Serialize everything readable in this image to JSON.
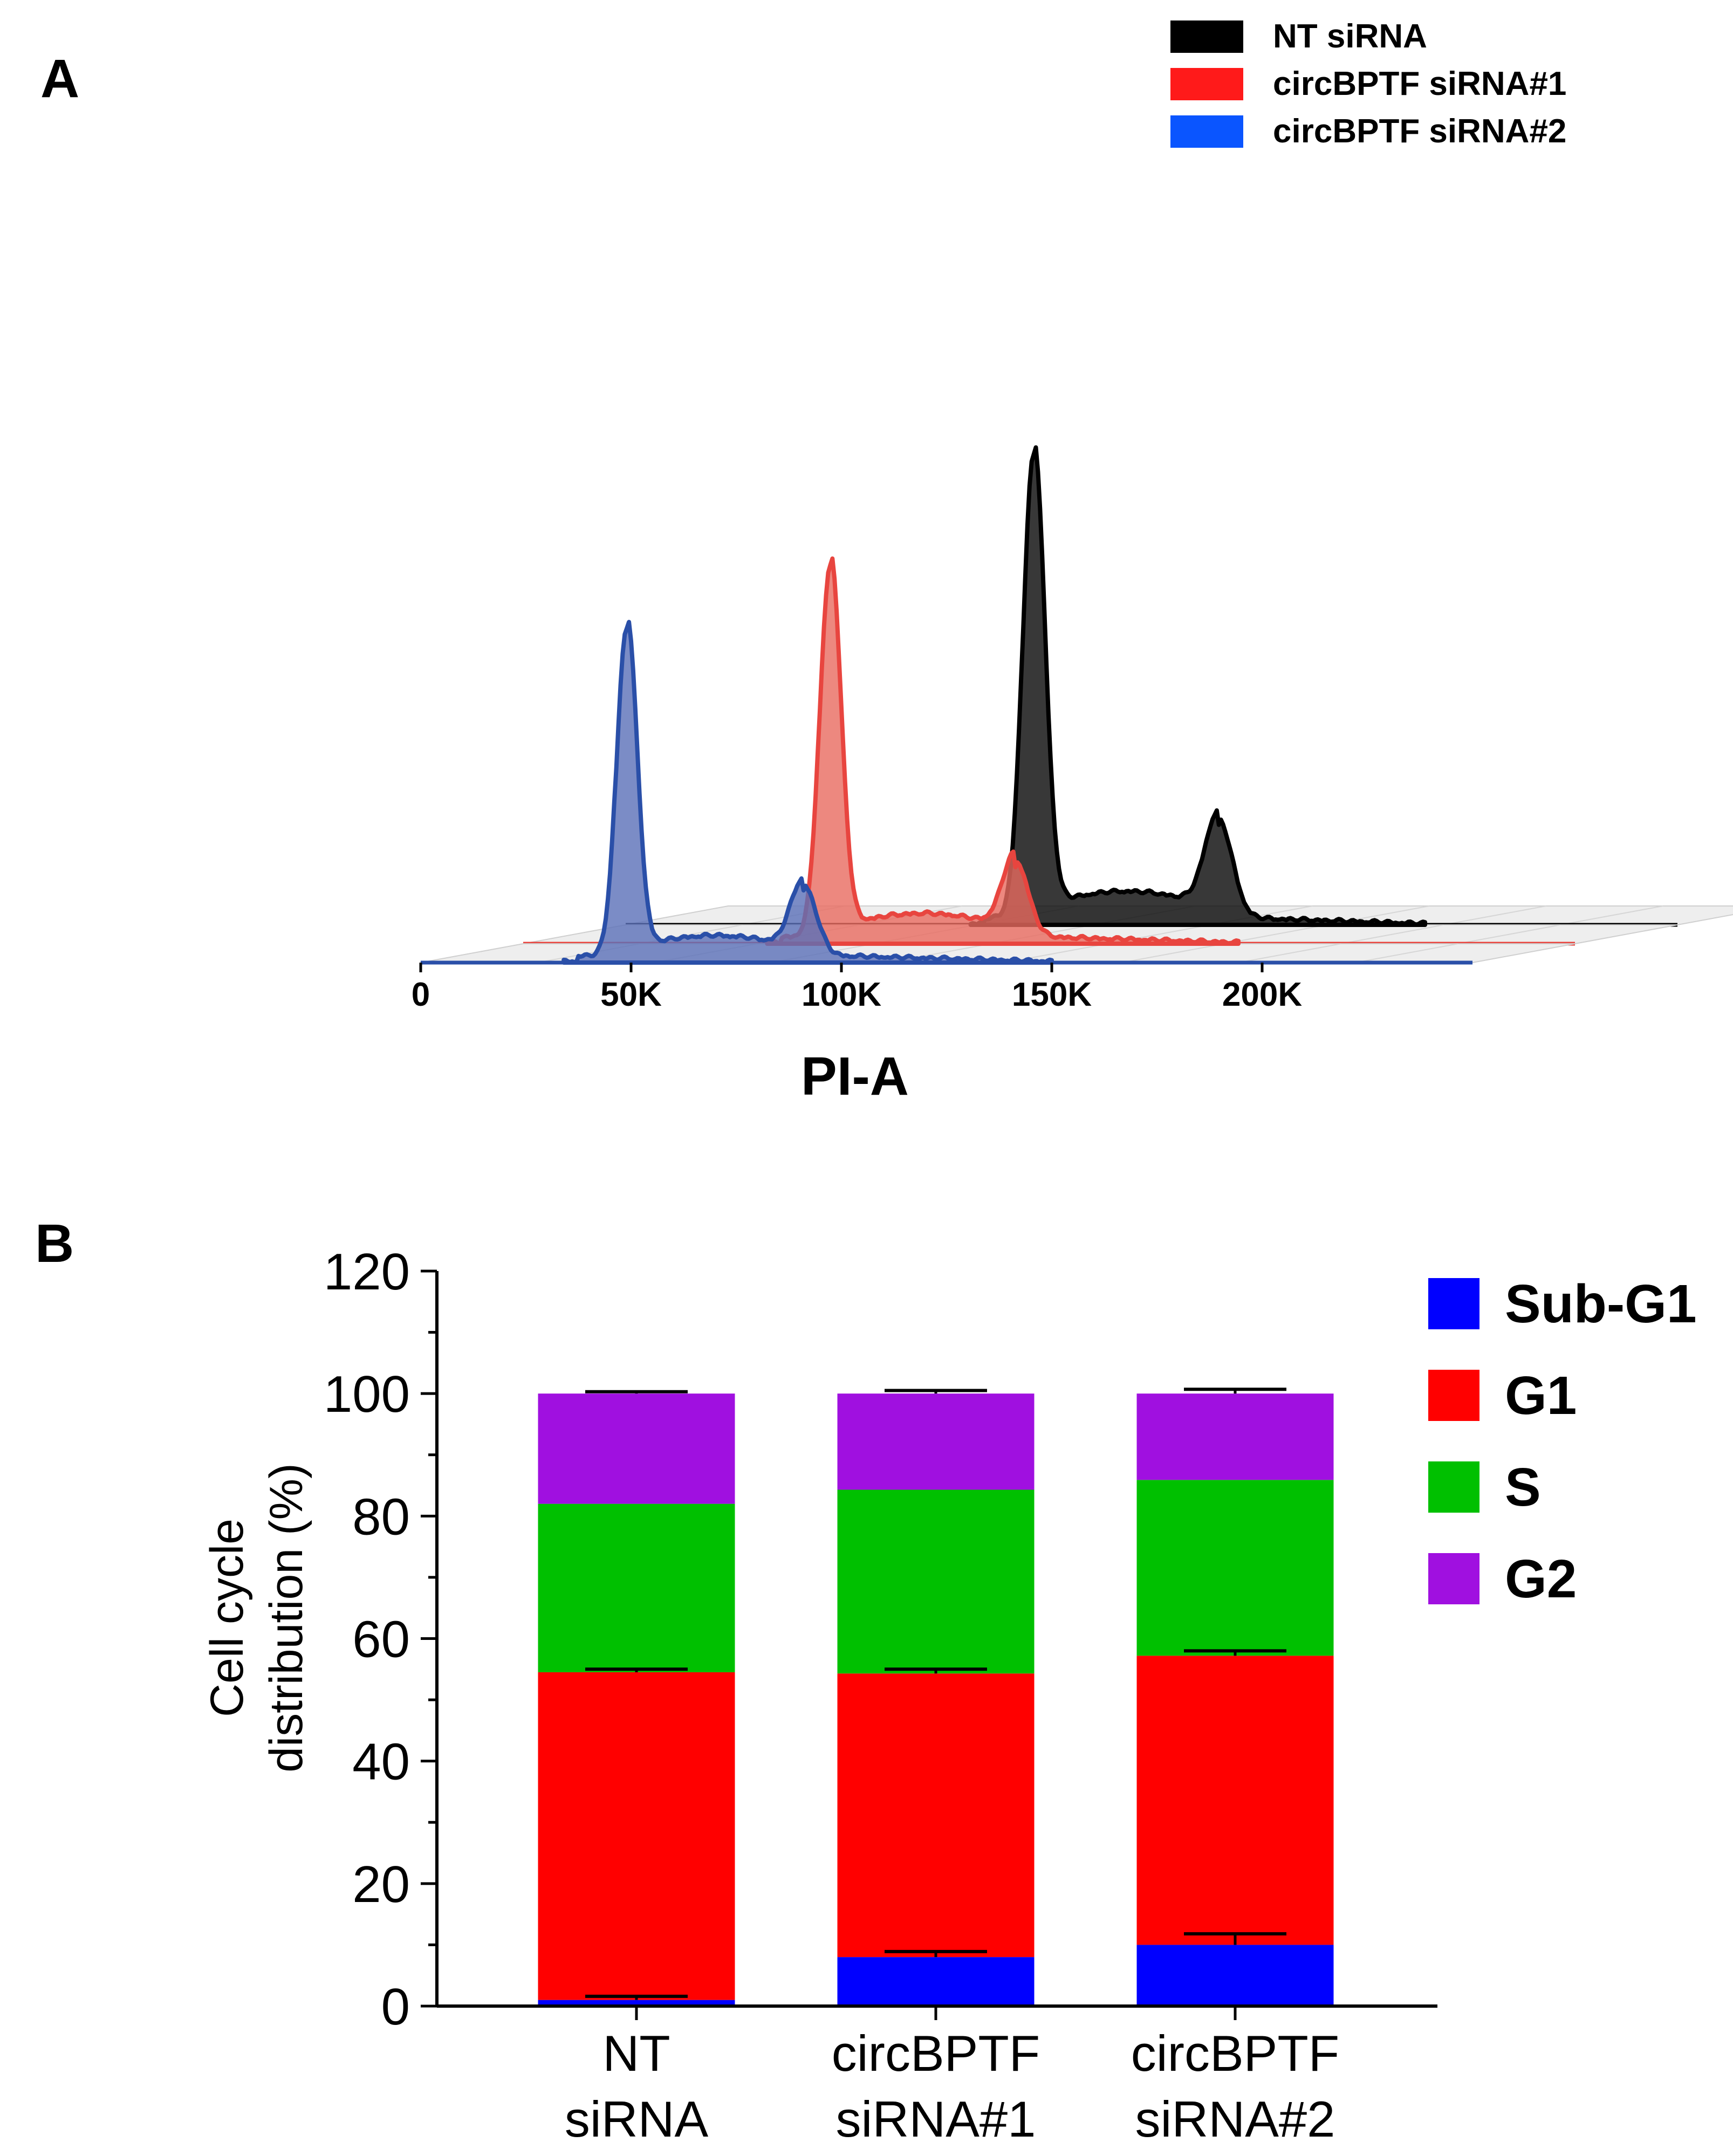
{
  "chart_data": [
    {
      "panel": "A",
      "type": "area",
      "title": "",
      "xlabel": "PI-A",
      "ylabel": "",
      "xticks": [
        {
          "value": 0,
          "label": "0"
        },
        {
          "value": 50000,
          "label": "50K"
        },
        {
          "value": 100000,
          "label": "100K"
        },
        {
          "value": 150000,
          "label": "150K"
        },
        {
          "value": 200000,
          "label": "200K"
        }
      ],
      "xlim": [
        0,
        250000
      ],
      "legend_position": "top-right",
      "series": [
        {
          "name": "NT siRNA",
          "color": "#000000",
          "fill": "#000000",
          "fill_opacity": 0.78,
          "depth": 2,
          "peaks": [
            {
              "x": 97000,
              "height": 0.87,
              "sigma": 2600
            },
            {
              "x": 141000,
              "height": 0.18,
              "sigma": 3200
            }
          ],
          "s_phase_level": 0.05,
          "tail_end": 190000
        },
        {
          "name": "circBPTF siRNA#1",
          "color": "#e8453f",
          "fill": "#e86a5f",
          "fill_opacity": 0.8,
          "depth": 1,
          "peaks": [
            {
              "x": 73000,
              "height": 0.7,
              "sigma": 2500
            },
            {
              "x": 117000,
              "height": 0.14,
              "sigma": 3000
            }
          ],
          "s_phase_level": 0.045,
          "tail_end": 170000
        },
        {
          "name": "circBPTF siRNA#2",
          "color": "#2a4fa8",
          "fill": "#5a6fb8",
          "fill_opacity": 0.8,
          "depth": 0,
          "peaks": [
            {
              "x": 49000,
              "height": 0.62,
              "sigma": 2400
            },
            {
              "x": 91000,
              "height": 0.13,
              "sigma": 3000
            }
          ],
          "s_phase_level": 0.04,
          "tail_end": 150000
        }
      ]
    },
    {
      "panel": "B",
      "type": "bar",
      "stacked": true,
      "title": "",
      "xlabel": "",
      "ylabel": "Cell cycle distribution (%)",
      "ylabel_lines": [
        "Cell cycle",
        "distribution (%)"
      ],
      "ylim": [
        0,
        120
      ],
      "yticks": [
        0,
        20,
        40,
        60,
        80,
        100,
        120
      ],
      "categories": [
        "NT siRNA",
        "circBPTF siRNA#1",
        "circBPTF siRNA#2"
      ],
      "category_lines": [
        [
          "NT",
          "siRNA"
        ],
        [
          "circBPTF",
          "siRNA#1"
        ],
        [
          "circBPTF",
          "siRNA#2"
        ]
      ],
      "legend_position": "right",
      "series": [
        {
          "name": "Sub-G1",
          "color": "#0000ff",
          "values": [
            1,
            8,
            10
          ],
          "errors": [
            0.6,
            0.9,
            1.8
          ]
        },
        {
          "name": "G1",
          "color": "#ff0000",
          "values": [
            53.5,
            46.3,
            47.2
          ],
          "errors": [
            0.5,
            0.7,
            0.8
          ]
        },
        {
          "name": "S",
          "color": "#00c000",
          "values": [
            27.5,
            30,
            28.7
          ],
          "errors": [
            0,
            0,
            0
          ]
        },
        {
          "name": "G2",
          "color": "#a010e0",
          "values": [
            18,
            15.7,
            14.1
          ],
          "errors": [
            0.3,
            0.5,
            0.7
          ]
        }
      ]
    }
  ]
}
